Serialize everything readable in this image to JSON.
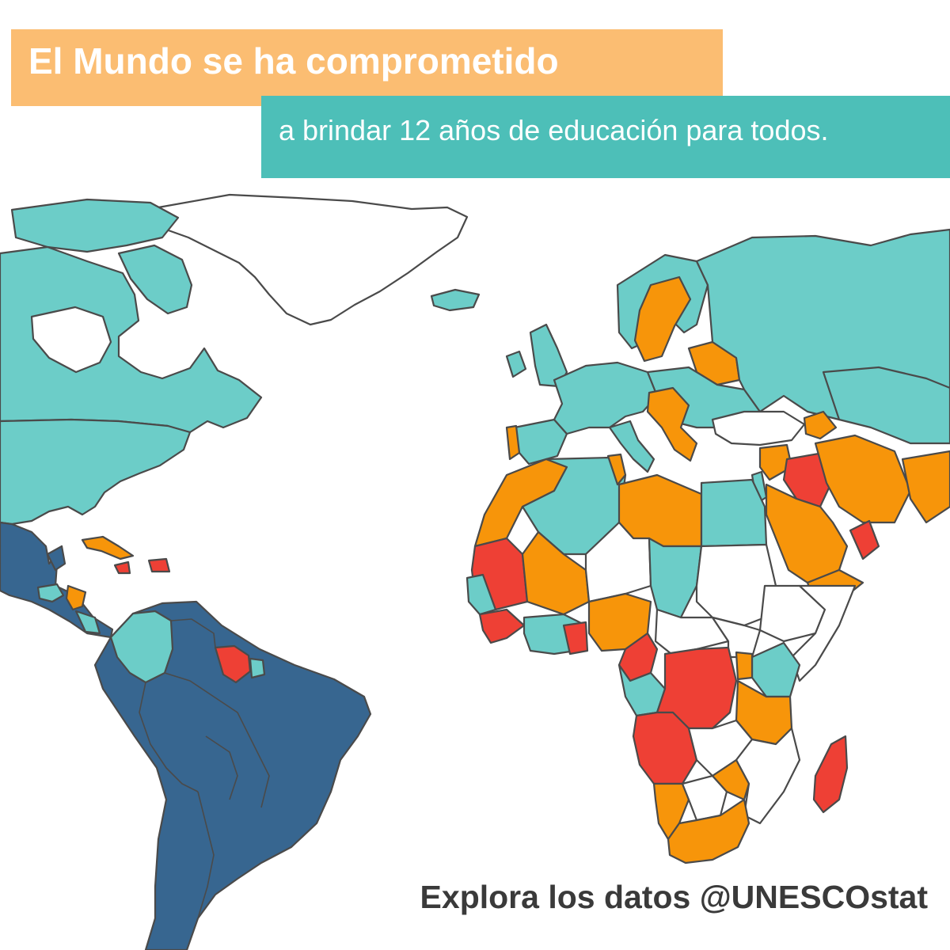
{
  "header": {
    "title": "El Mundo se ha comprometido",
    "subtitle": "a brindar 12 años de educación para todos."
  },
  "footer": {
    "text": "Explora los datos @UNESCOstat"
  },
  "colors": {
    "background": "#ffffff",
    "title_band": "#fbbd72",
    "subtitle_band": "#4dbfb8",
    "category_teal": "#6ccdc8",
    "category_orange": "#f7950a",
    "category_red": "#ee4035",
    "category_dark_blue": "#376690",
    "no_data": "#ffffff",
    "borders": "#4a4a4a",
    "footer_text": "#3a3a3a"
  }
}
